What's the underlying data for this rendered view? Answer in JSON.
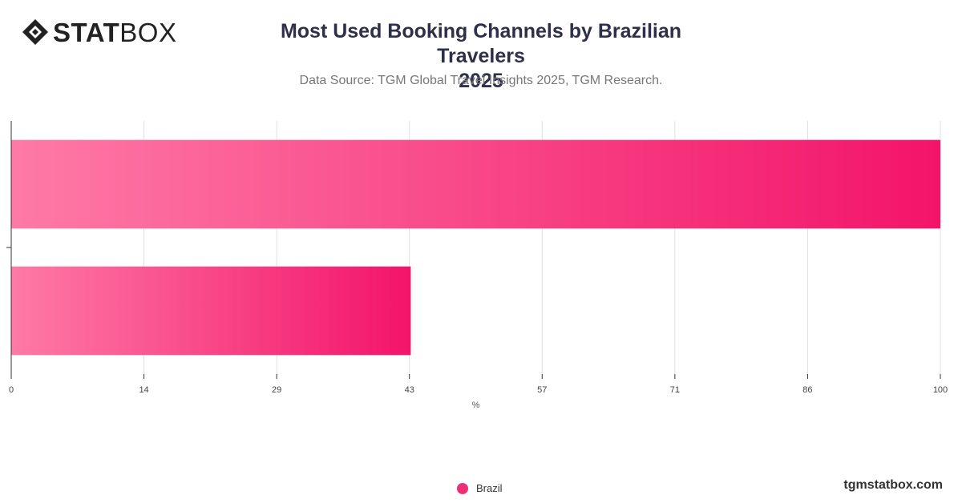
{
  "brand": {
    "logo_bold": "STAT",
    "logo_thin": "BOX",
    "site": "tgmstatbox.com"
  },
  "chart_data": {
    "type": "bar",
    "orientation": "horizontal",
    "title": "Most Used Booking Channels by Brazilian Travelers",
    "title_year": "2025",
    "subtitle": "Data Source: TGM Global Travel Insights 2025, TGM Research.",
    "xlabel": "%",
    "ylabel": "",
    "xlim": [
      0,
      100
    ],
    "xticks": [
      "0",
      "14",
      "29",
      "43",
      "57",
      "71",
      "86",
      "100"
    ],
    "categories": [
      "",
      ""
    ],
    "series": [
      {
        "name": "Brazil",
        "values": [
          100,
          43
        ]
      }
    ],
    "colors": {
      "bar_light": "#fe7aa6",
      "bar_dark": "#f3146a",
      "legend": "#ee2f78",
      "grid": "#e0e0e0",
      "axis": "#333333"
    },
    "grid": true,
    "legend_position": "bottom-center"
  }
}
